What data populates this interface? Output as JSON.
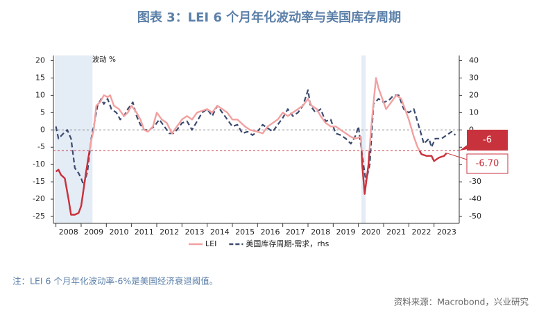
{
  "chart_data": {
    "type": "line",
    "title": "图表 3：LEI 6 个月年化波动率与美国库存周期",
    "axis_note": "6个月年化波动 %",
    "note": "注：LEI 6 个月年化波动率-6%是美国经济衰退阈值。",
    "source": "资料来源：Macrobond，兴业研究",
    "xlim": [
      2007.9,
      2024.0
    ],
    "xticks": [
      2008,
      2009,
      2010,
      2011,
      2012,
      2013,
      2014,
      2015,
      2016,
      2017,
      2018,
      2019,
      2020,
      2021,
      2022,
      2023
    ],
    "ylim": [
      -27,
      21.5
    ],
    "yticks": [
      -25,
      -20,
      -15,
      -10,
      -5,
      0,
      5,
      10,
      15,
      20
    ],
    "y2lim": [
      -54,
      43
    ],
    "y2ticks": [
      -50,
      -40,
      -30,
      -20,
      -10,
      0,
      10,
      20,
      30,
      40
    ],
    "shaded_periods": [
      [
        2007.95,
        2009.45
      ],
      [
        2020.12,
        2020.29
      ]
    ],
    "shade_color": "#e4ecf6",
    "zero_line": 0,
    "threshold": -6,
    "threshold_color": "#c8323c",
    "series": [
      {
        "name": "LEI",
        "color": "#f2a0a0",
        "below_threshold_color": "#c8323c",
        "style": "solid",
        "end_label": "-6.70",
        "x": [
          2008.0,
          2008.1,
          2008.2,
          2008.35,
          2008.5,
          2008.6,
          2008.75,
          2008.9,
          2009.0,
          2009.2,
          2009.4,
          2009.5,
          2009.6,
          2009.75,
          2009.9,
          2010.05,
          2010.15,
          2010.3,
          2010.5,
          2010.7,
          2010.85,
          2011.0,
          2011.2,
          2011.35,
          2011.5,
          2011.65,
          2011.85,
          2012.0,
          2012.2,
          2012.4,
          2012.6,
          2012.8,
          2013.0,
          2013.2,
          2013.4,
          2013.6,
          2013.8,
          2014.0,
          2014.2,
          2014.4,
          2014.6,
          2014.8,
          2015.0,
          2015.2,
          2015.5,
          2015.7,
          2016.0,
          2016.2,
          2016.4,
          2016.6,
          2016.8,
          2017.0,
          2017.2,
          2017.4,
          2017.6,
          2017.8,
          2018.0,
          2018.15,
          2018.35,
          2018.5,
          2018.7,
          2018.9,
          2019.1,
          2019.3,
          2019.5,
          2019.7,
          2019.9,
          2020.1,
          2020.15,
          2020.25,
          2020.4,
          2020.5,
          2020.6,
          2020.7,
          2020.8,
          2020.95,
          2021.1,
          2021.3,
          2021.5,
          2021.7,
          2021.9,
          2022.0,
          2022.2,
          2022.35,
          2022.5,
          2022.7,
          2022.9,
          2023.0,
          2023.2,
          2023.4,
          2023.5
        ],
        "values": [
          -12,
          -11.5,
          -13,
          -14,
          -20,
          -24.5,
          -24.5,
          -24,
          -22,
          -12,
          -3,
          0,
          7,
          8,
          10,
          9.5,
          10,
          7,
          6,
          4,
          5,
          7,
          5,
          3,
          0,
          -0.5,
          1,
          5,
          3,
          2,
          -1,
          1,
          3,
          4,
          3,
          5,
          5.5,
          6,
          5,
          7,
          6,
          5,
          3,
          3,
          1,
          0,
          -0.5,
          -1,
          1,
          2,
          3,
          5,
          4,
          5,
          6,
          7,
          9,
          7,
          6,
          4,
          2,
          1,
          1,
          0,
          -1,
          -2,
          -2.5,
          -2,
          -10,
          -18.5,
          -10,
          0,
          8,
          15,
          12,
          9,
          6,
          8,
          10,
          9,
          5,
          3,
          -2,
          -5,
          -7,
          -7.5,
          -7.5,
          -9,
          -8,
          -7.5,
          -6.7
        ]
      },
      {
        "name": "美国库存周期-需求，rhs",
        "color": "#3c4a6e",
        "style": "dashed",
        "axis": "y2",
        "x": [
          2008.0,
          2008.1,
          2008.3,
          2008.45,
          2008.6,
          2008.75,
          2008.9,
          2009.0,
          2009.1,
          2009.25,
          2009.4,
          2009.5,
          2009.65,
          2009.8,
          2009.9,
          2010.05,
          2010.2,
          2010.4,
          2010.55,
          2010.7,
          2010.85,
          2011.05,
          2011.2,
          2011.35,
          2011.5,
          2011.7,
          2011.9,
          2012.1,
          2012.3,
          2012.5,
          2012.65,
          2012.8,
          2013.0,
          2013.2,
          2013.4,
          2013.6,
          2013.8,
          2014.0,
          2014.2,
          2014.4,
          2014.6,
          2014.8,
          2015.0,
          2015.2,
          2015.4,
          2015.6,
          2015.8,
          2016.0,
          2016.2,
          2016.4,
          2016.6,
          2016.8,
          2017.0,
          2017.2,
          2017.4,
          2017.6,
          2017.8,
          2018.0,
          2018.1,
          2018.3,
          2018.5,
          2018.7,
          2018.9,
          2019.1,
          2019.3,
          2019.5,
          2019.7,
          2019.9,
          2020.0,
          2020.2,
          2020.3,
          2020.45,
          2020.6,
          2020.8,
          2021.0,
          2021.2,
          2021.4,
          2021.6,
          2021.8,
          2022.0,
          2022.2,
          2022.4,
          2022.6,
          2022.8,
          2022.9,
          2023.05,
          2023.3,
          2023.5,
          2023.7,
          2023.85
        ],
        "values": [
          2,
          -5,
          -2,
          0,
          -5,
          -22,
          -25,
          -28,
          -32,
          -24,
          -5,
          2,
          14,
          18,
          15,
          18,
          12,
          10,
          6,
          8,
          12,
          16,
          8,
          3,
          0,
          0,
          2,
          6,
          2,
          -2,
          -2,
          0,
          4,
          5,
          0,
          5,
          10,
          12,
          8,
          14,
          10,
          6,
          2,
          3,
          -2,
          -1,
          -3,
          -1,
          3,
          1,
          -1,
          3,
          7,
          12,
          8,
          10,
          14,
          23,
          14,
          10,
          12,
          5,
          6,
          -2,
          -3,
          -5,
          -8,
          -3,
          2,
          -20,
          -30,
          -20,
          15,
          18,
          16,
          17,
          20,
          20,
          12,
          10,
          12,
          2,
          -8,
          -5,
          -10,
          -5,
          -5,
          -3,
          -1,
          -3
        ]
      }
    ]
  }
}
